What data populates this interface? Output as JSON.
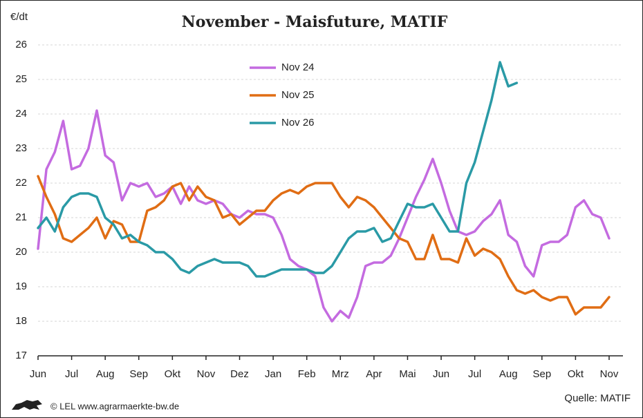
{
  "chart_data": {
    "type": "line",
    "title": "November - Maisfuture, MATIF",
    "y_label": "€/dt",
    "source": "Quelle: MATIF",
    "credit": "© LEL www.agrarmaerkte-bw.de",
    "categories": [
      "Jun",
      null,
      null,
      null,
      "Jul",
      null,
      null,
      null,
      "Aug",
      null,
      null,
      null,
      "Sep",
      null,
      null,
      null,
      "Okt",
      null,
      null,
      null,
      "Nov",
      null,
      null,
      null,
      "Dez",
      null,
      null,
      null,
      "Jan",
      null,
      null,
      null,
      "Feb",
      null,
      null,
      null,
      "Mrz",
      null,
      null,
      null,
      "Apr",
      null,
      null,
      null,
      "Mai",
      null,
      null,
      null,
      "Jun",
      null,
      null,
      null,
      "Jul",
      null,
      null,
      null,
      "Aug",
      null,
      null,
      null,
      "Sep",
      null,
      null,
      null,
      "Okt",
      null,
      null,
      null,
      "Nov"
    ],
    "series": [
      {
        "name": "Nov 24",
        "color": "#c46be0",
        "values": [
          20.1,
          22.4,
          22.9,
          23.8,
          22.4,
          22.5,
          23.0,
          24.1,
          22.8,
          22.6,
          21.5,
          22.0,
          21.9,
          22.0,
          21.6,
          21.7,
          21.9,
          21.4,
          21.9,
          21.5,
          21.4,
          21.5,
          21.4,
          21.1,
          21.0,
          21.2,
          21.1,
          21.1,
          21.0,
          20.5,
          19.8,
          19.6,
          19.5,
          19.3,
          18.4,
          18.0,
          18.3,
          18.1,
          18.7,
          19.6,
          19.7,
          19.7,
          19.9,
          20.4,
          21.0,
          21.6,
          22.1,
          22.7,
          22.0,
          21.2,
          20.6,
          20.5,
          20.6,
          20.9,
          21.1,
          21.5,
          20.5,
          20.3,
          19.6,
          19.3,
          20.2,
          20.3,
          20.3,
          20.5,
          21.3,
          21.5,
          21.1,
          21.0,
          20.4
        ]
      },
      {
        "name": "Nov 25",
        "color": "#e06d14",
        "values": [
          22.2,
          21.6,
          21.1,
          20.4,
          20.3,
          20.5,
          20.7,
          21.0,
          20.4,
          20.9,
          20.8,
          20.3,
          20.3,
          21.2,
          21.3,
          21.5,
          21.9,
          22.0,
          21.5,
          21.9,
          21.6,
          21.5,
          21.0,
          21.1,
          20.8,
          21.0,
          21.2,
          21.2,
          21.5,
          21.7,
          21.8,
          21.7,
          21.9,
          22.0,
          22.0,
          22.0,
          21.6,
          21.3,
          21.6,
          21.5,
          21.3,
          21.0,
          20.7,
          20.4,
          20.3,
          19.8,
          19.8,
          20.5,
          19.8,
          19.8,
          19.7,
          20.4,
          19.9,
          20.1,
          20.0,
          19.8,
          19.3,
          18.9,
          18.8,
          18.9,
          18.7,
          18.6,
          18.7,
          18.7,
          18.2,
          18.4,
          18.4,
          18.4,
          18.7
        ]
      },
      {
        "name": "Nov 26",
        "color": "#2a9aa6",
        "values": [
          20.7,
          21.0,
          20.6,
          21.3,
          21.6,
          21.7,
          21.7,
          21.6,
          21.0,
          20.8,
          20.4,
          20.5,
          20.3,
          20.2,
          20.0,
          20.0,
          19.8,
          19.5,
          19.4,
          19.6,
          19.7,
          19.8,
          19.7,
          19.7,
          19.7,
          19.6,
          19.3,
          19.3,
          19.4,
          19.5,
          19.5,
          19.5,
          19.5,
          19.4,
          19.4,
          19.6,
          20.0,
          20.4,
          20.6,
          20.6,
          20.7,
          20.3,
          20.4,
          20.9,
          21.4,
          21.3,
          21.3,
          21.4,
          21.0,
          20.6,
          20.6,
          22.0,
          22.6,
          23.5,
          24.4,
          25.5,
          24.8,
          24.9,
          null,
          null,
          null,
          null,
          null,
          null,
          null,
          null,
          null,
          null,
          null
        ]
      }
    ],
    "ylim": [
      17,
      26
    ],
    "yticks": [
      17,
      18,
      19,
      20,
      21,
      22,
      23,
      24,
      25,
      26
    ],
    "grid": true
  }
}
